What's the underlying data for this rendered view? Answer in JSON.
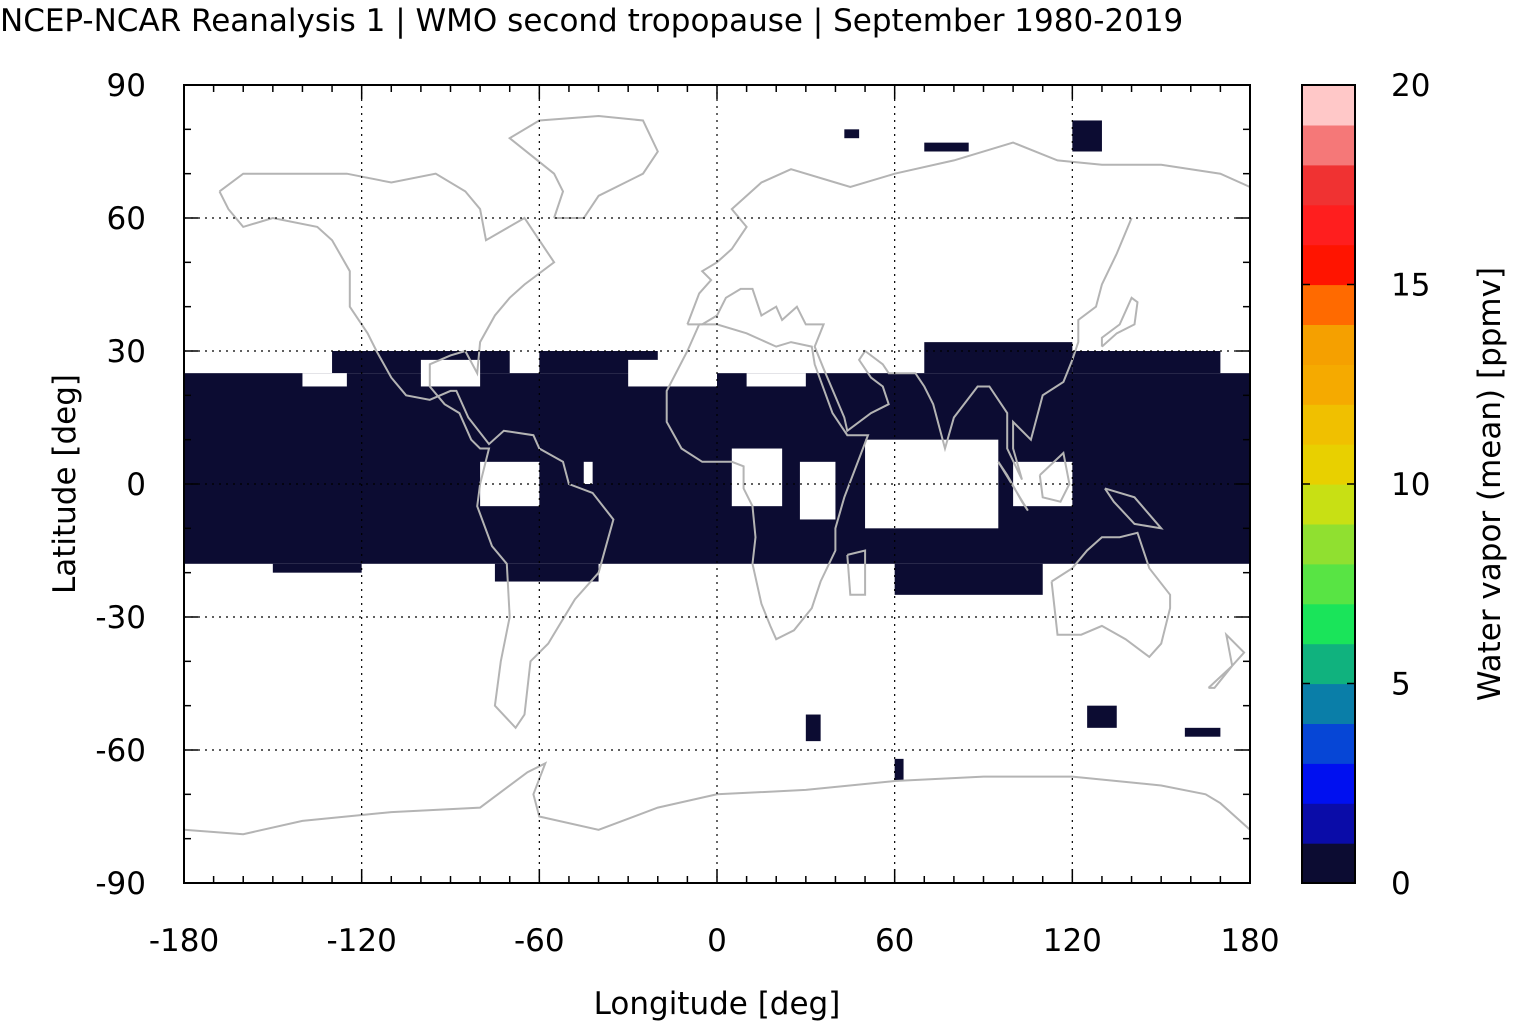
{
  "title": "NCEP-NCAR Reanalysis 1 | WMO second tropopause | September 1980-2019",
  "chart_data": {
    "type": "heatmap",
    "title": "NCEP-NCAR Reanalysis 1 | WMO second tropopause | September 1980-2019",
    "xlabel": "Longitude [deg]",
    "ylabel": "Latitude [deg]",
    "xlim": [
      -180,
      180
    ],
    "ylim": [
      -90,
      90
    ],
    "xticks": [
      "-180",
      "-120",
      "-60",
      "0",
      "60",
      "120",
      "180"
    ],
    "yticks": [
      "90",
      "60",
      "30",
      "0",
      "-30",
      "-60",
      "-90"
    ],
    "grid": true,
    "colorbar": {
      "label": "Water vapor (mean) [ppmv]",
      "range": [
        0,
        20
      ],
      "ticks": [
        "0",
        "5",
        "10",
        "15",
        "20"
      ],
      "colors": [
        "#0c0c32",
        "#0a0ca8",
        "#0010f0",
        "#0646d6",
        "#0a7ea8",
        "#10b27e",
        "#1ae45a",
        "#58e444",
        "#90e030",
        "#c8e014",
        "#e8d000",
        "#f0c000",
        "#f5aa00",
        "#f5a000",
        "#ff6a00",
        "#ff1400",
        "#ff1e1e",
        "#f03232",
        "#f57878",
        "#ffc8c8"
      ]
    },
    "cell_value_ppmv": 0.5,
    "data_description_bands": [
      {
        "lat_min": -25,
        "lat_max": 30,
        "lon_min": -180,
        "lon_max": 180
      }
    ],
    "cells": [
      {
        "lon": [
          -180,
          180
        ],
        "lat": [
          -18,
          25
        ]
      },
      {
        "lon": [
          -130,
          -70
        ],
        "lat": [
          25,
          30
        ]
      },
      {
        "lon": [
          -60,
          -20
        ],
        "lat": [
          25,
          30
        ]
      },
      {
        "lon": [
          70,
          120
        ],
        "lat": [
          25,
          32
        ]
      },
      {
        "lon": [
          120,
          170
        ],
        "lat": [
          25,
          30
        ]
      },
      {
        "lon": [
          -150,
          -120
        ],
        "lat": [
          -20,
          -18
        ]
      },
      {
        "lon": [
          -75,
          -40
        ],
        "lat": [
          -22,
          -18
        ]
      },
      {
        "lon": [
          60,
          110
        ],
        "lat": [
          -25,
          -18
        ]
      },
      {
        "lon": [
          30,
          35
        ],
        "lat": [
          -58,
          -52
        ]
      },
      {
        "lon": [
          60,
          63
        ],
        "lat": [
          -67,
          -62
        ]
      },
      {
        "lon": [
          125,
          135
        ],
        "lat": [
          -55,
          -50
        ]
      },
      {
        "lon": [
          158,
          170
        ],
        "lat": [
          -57,
          -55
        ]
      },
      {
        "lon": [
          43,
          48
        ],
        "lat": [
          78,
          80
        ]
      },
      {
        "lon": [
          70,
          85
        ],
        "lat": [
          75,
          77
        ]
      },
      {
        "lon": [
          120,
          130
        ],
        "lat": [
          75,
          82
        ]
      }
    ],
    "holes": [
      {
        "lon": [
          5,
          22
        ],
        "lat": [
          -5,
          8
        ]
      },
      {
        "lon": [
          28,
          40
        ],
        "lat": [
          -8,
          5
        ]
      },
      {
        "lon": [
          50,
          95
        ],
        "lat": [
          -10,
          10
        ]
      },
      {
        "lon": [
          100,
          120
        ],
        "lat": [
          -5,
          5
        ]
      },
      {
        "lon": [
          -80,
          -60
        ],
        "lat": [
          -5,
          5
        ]
      },
      {
        "lon": [
          -45,
          -42
        ],
        "lat": [
          0,
          5
        ]
      },
      {
        "lon": [
          -100,
          -80
        ],
        "lat": [
          22,
          28
        ]
      },
      {
        "lon": [
          -140,
          -125
        ],
        "lat": [
          22,
          25
        ]
      },
      {
        "lon": [
          -30,
          0
        ],
        "lat": [
          22,
          28
        ]
      },
      {
        "lon": [
          10,
          30
        ],
        "lat": [
          22,
          25
        ]
      }
    ],
    "background": "#ffffff",
    "coastline_color": "#b4b4b4"
  }
}
